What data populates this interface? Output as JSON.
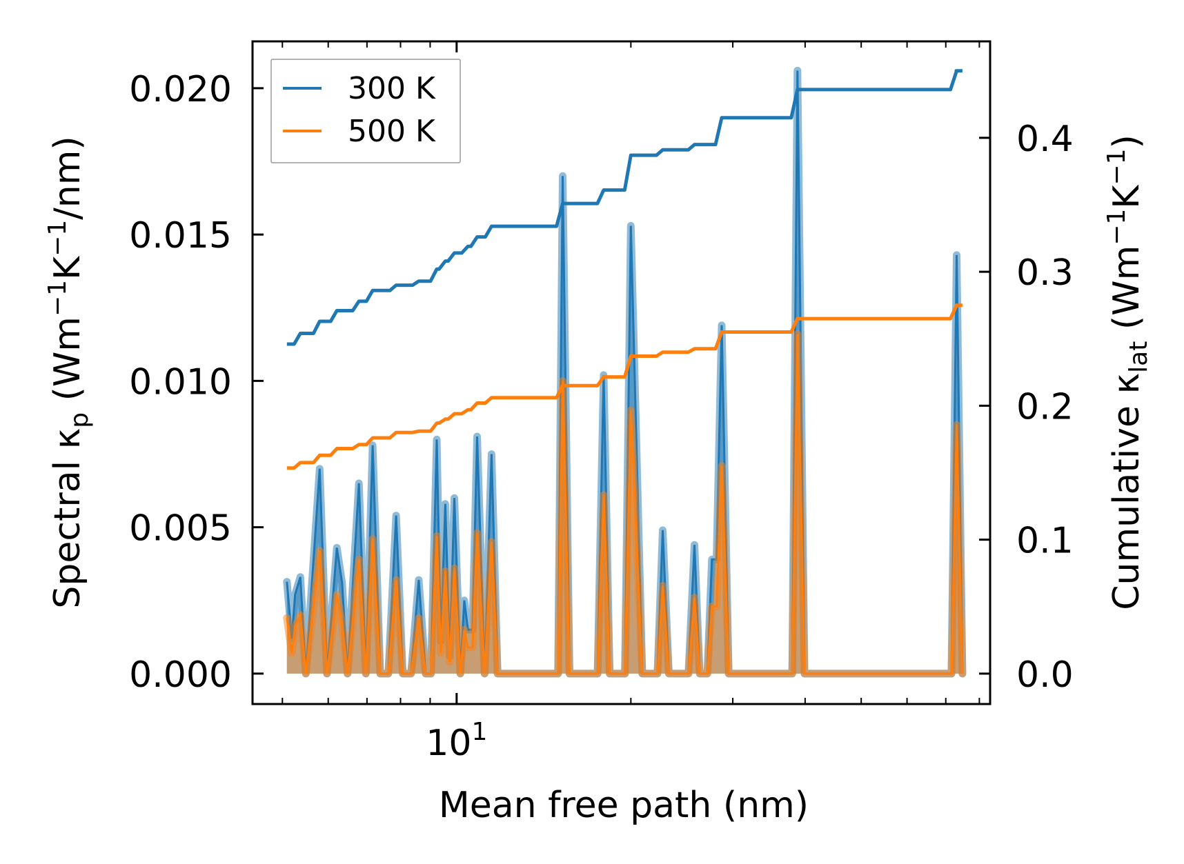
{
  "chart_data": {
    "type": "line",
    "xlabel": "Mean free path (nm)",
    "xscale": "log",
    "xlim": [
      4.44,
      83.5
    ],
    "x_major_ticks": [
      {
        "value": 10,
        "base": "10",
        "exp": "1"
      }
    ],
    "x_minor_ticks": [
      5,
      6,
      7,
      8,
      9,
      20,
      30,
      40,
      50,
      60,
      70,
      80
    ],
    "left_axis": {
      "label": {
        "main": "Spectral κ",
        "sub": "p",
        "pre": " (Wm",
        "sup1": "−1",
        "mid": "K",
        "sup2": "−1",
        "post": "/nm)"
      },
      "ylim": [
        -0.00104,
        0.0216
      ],
      "ticks": [
        0,
        0.005,
        0.01,
        0.015,
        0.02
      ],
      "tick_labels": [
        "0.000",
        "0.005",
        "0.010",
        "0.015",
        "0.020"
      ]
    },
    "right_axis": {
      "label": {
        "main": "Cumulative κ",
        "sub": "lat",
        "pre": " (Wm",
        "sup1": "−1",
        "mid": "K",
        "sup2": "−1",
        "post": ")"
      },
      "ylim": [
        -0.0227,
        0.472
      ],
      "ticks": [
        0,
        0.1,
        0.2,
        0.3,
        0.4
      ],
      "tick_labels": [
        "0.0",
        "0.1",
        "0.2",
        "0.3",
        "0.4"
      ]
    },
    "legend": {
      "placement": "upper-left",
      "entries": [
        "300 K",
        "500 K"
      ]
    },
    "colors": {
      "300 K": "#1f77b4",
      "500 K": "#ff7f0e"
    },
    "spectral": {
      "x": [
        5.09,
        5.19,
        5.26,
        5.37,
        5.49,
        5.8,
        5.97,
        6.21,
        6.34,
        6.48,
        6.78,
        6.97,
        7.16,
        7.38,
        7.62,
        7.86,
        8.07,
        8.34,
        8.6,
        8.84,
        9.03,
        9.24,
        9.39,
        9.56,
        9.73,
        9.91,
        10.15,
        10.31,
        10.46,
        10.65,
        10.85,
        11.18,
        11.49,
        11.77,
        14.97,
        15.25,
        15.67,
        17.52,
        17.95,
        18.38,
        19.53,
        20.0,
        20.93,
        22.23,
        22.7,
        23.26,
        25.15,
        25.76,
        26.3,
        27.11,
        27.61,
        28.12,
        28.71,
        29.51,
        38.0,
        38.8,
        39.9,
        71.6,
        73.1,
        74.8
      ],
      "series": [
        {
          "name": "300 K",
          "values": [
            0.00314,
            0.0012,
            0.0027,
            0.0033,
            0,
            0.007,
            0,
            0.0043,
            0.0031,
            0,
            0.0065,
            0,
            0.0078,
            0,
            0,
            0.0054,
            0,
            0,
            0.0032,
            0,
            0,
            0.008,
            0.0011,
            0.0058,
            0.0006,
            0.006,
            0,
            0.0025,
            0.0015,
            0.0015,
            0.0081,
            0,
            0.0075,
            0,
            0,
            0.017,
            0,
            0,
            0.0102,
            0,
            0,
            0.0153,
            0,
            0,
            0.0049,
            0,
            0,
            0.0044,
            0,
            0,
            0.0039,
            0.0039,
            0.0119,
            0,
            0,
            0.0206,
            0,
            0,
            0.0143,
            0
          ]
        },
        {
          "name": "500 K",
          "values": [
            0.0019,
            0.0007,
            0.0016,
            0.002,
            0,
            0.0042,
            0,
            0.0027,
            0.0017,
            0,
            0.0039,
            0,
            0.0046,
            0,
            0,
            0.0032,
            0,
            0,
            0.0019,
            0,
            0,
            0.0047,
            0.0007,
            0.0035,
            0.0004,
            0.0036,
            0,
            0.0015,
            0.0009,
            0.0009,
            0.0048,
            0,
            0.0045,
            0,
            0,
            0.01,
            0,
            0,
            0.0061,
            0,
            0,
            0.009,
            0,
            0,
            0.003,
            0,
            0,
            0.0026,
            0,
            0,
            0.0023,
            0.0023,
            0.0071,
            0,
            0,
            0.0116,
            0,
            0,
            0.0085,
            0
          ]
        }
      ]
    },
    "cumulative": {
      "x": [
        5.09,
        5.37,
        5.8,
        6.21,
        6.78,
        7.16,
        7.86,
        8.6,
        9.24,
        9.56,
        9.91,
        10.46,
        10.85,
        11.49,
        15.25,
        17.95,
        20.0,
        22.7,
        25.76,
        28.71,
        38.8,
        73.1,
        74.8
      ],
      "series": [
        {
          "name": "300 K",
          "values": [
            0.246,
            0.254,
            0.263,
            0.271,
            0.278,
            0.286,
            0.29,
            0.293,
            0.302,
            0.308,
            0.314,
            0.319,
            0.326,
            0.334,
            0.351,
            0.361,
            0.387,
            0.391,
            0.395,
            0.415,
            0.436,
            0.45,
            0.45
          ]
        },
        {
          "name": "500 K",
          "values": [
            0.1535,
            0.1575,
            0.163,
            0.168,
            0.171,
            0.176,
            0.18,
            0.181,
            0.187,
            0.19,
            0.194,
            0.197,
            0.202,
            0.206,
            0.215,
            0.2215,
            0.237,
            0.24,
            0.2425,
            0.255,
            0.265,
            0.275,
            0.275
          ]
        }
      ]
    }
  }
}
